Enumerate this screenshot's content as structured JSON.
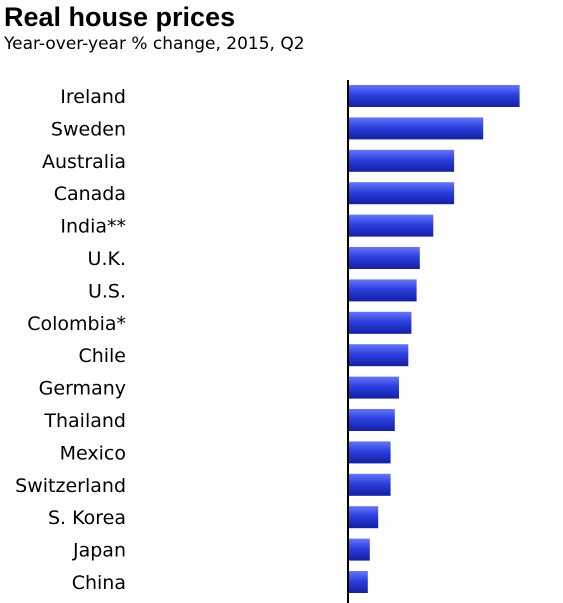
{
  "header": {
    "title": "Real house prices",
    "subtitle": "Year-over-year % change, 2015, Q2"
  },
  "colors": {
    "bar": "#2c3fe0",
    "bar_light": "#6677f5",
    "bar_dark": "#141fa0",
    "axis": "#000000",
    "text": "#000000"
  },
  "chart_data": {
    "type": "bar",
    "orientation": "horizontal",
    "title": "Real house prices",
    "subtitle": "Year-over-year % change, 2015, Q2",
    "categories": [
      "Ireland",
      "Sweden",
      "Australia",
      "Canada",
      "India**",
      "U.K.",
      "U.S.",
      "Colombia*",
      "Chile",
      "Germany",
      "Thailand",
      "Mexico",
      "Switzerland",
      "S. Korea",
      "Japan",
      "China"
    ],
    "values": [
      16.5,
      13.0,
      10.2,
      10.2,
      8.2,
      6.9,
      6.6,
      6.1,
      5.8,
      4.9,
      4.5,
      4.1,
      4.1,
      2.9,
      2.1,
      1.9
    ],
    "xlim": [
      0,
      17.5
    ],
    "grid": false,
    "value_labels_shown": false
  }
}
